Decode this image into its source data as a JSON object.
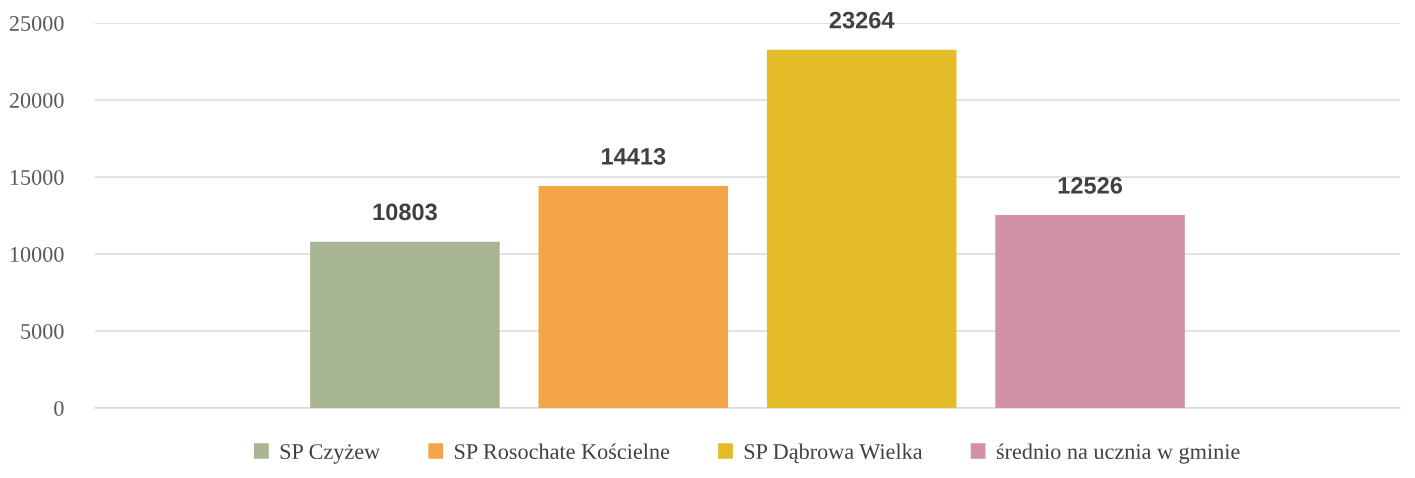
{
  "chart_data": {
    "type": "bar",
    "categories": [
      null
    ],
    "series": [
      {
        "name": "SP Czyżew",
        "color": "#a8b593",
        "values": [
          10803
        ]
      },
      {
        "name": "SP Rosochate Kościelne",
        "color": "#f2a446",
        "values": [
          14413
        ]
      },
      {
        "name": "SP Dąbrowa Wielka",
        "color": "#e4bc2a",
        "values": [
          23264
        ]
      },
      {
        "name": "średnio na ucznia w gminie",
        "color": "#d291a8",
        "values": [
          12526
        ]
      }
    ],
    "ylim": [
      0,
      25000
    ],
    "yticks": [
      0,
      5000,
      10000,
      15000,
      20000,
      25000
    ],
    "grid": "y",
    "legend": "bottom",
    "data_labels": true
  }
}
